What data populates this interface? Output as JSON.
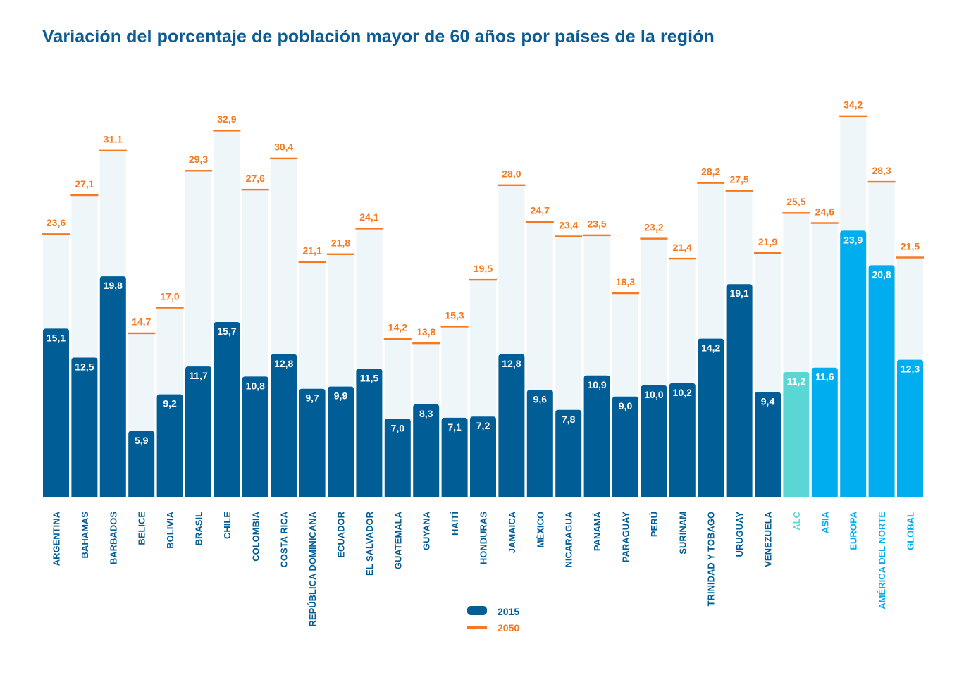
{
  "title": "Variación del porcentaje de población mayor de 60 años por países de la región",
  "legend": {
    "series_2015": "2015",
    "series_2050": "2050"
  },
  "colors": {
    "bar_country": "#005d95",
    "bar_alc": "#5ad6d4",
    "bar_region": "#00aeef",
    "bar_2050_bg": "#eef6fa",
    "marker_2050": "#f47920",
    "title": "#0b5c92"
  },
  "chart_data": {
    "type": "bar",
    "title": "Variación del porcentaje de población mayor de 60 años por países de la región",
    "xlabel": "",
    "ylabel": "",
    "ylim": [
      0,
      40
    ],
    "grid": false,
    "legend_position": "bottom-center",
    "categories": [
      "ARGENTINA",
      "BAHAMAS",
      "BARBADOS",
      "BELICE",
      "BOLIVIA",
      "BRASIL",
      "CHILE",
      "COLOMBIA",
      "COSTA RICA",
      "REPÚBLICA DOMINICANA",
      "ECUADOR",
      "EL SALVADOR",
      "GUATEMALA",
      "GUYANA",
      "HAITÍ",
      "HONDURAS",
      "JAMAICA",
      "MÉXICO",
      "NICARAGUA",
      "PANAMÁ",
      "PARAGUAY",
      "PERÚ",
      "SURINAM",
      "TRINIDAD Y TOBAGO",
      "URUGUAY",
      "VENEZUELA",
      "ALC",
      "ASIA",
      "EUROPA",
      "AMÉRICA DEL NORTE",
      "GLOBAL"
    ],
    "category_groups": [
      "country",
      "country",
      "country",
      "country",
      "country",
      "country",
      "country",
      "country",
      "country",
      "country",
      "country",
      "country",
      "country",
      "country",
      "country",
      "country",
      "country",
      "country",
      "country",
      "country",
      "country",
      "country",
      "country",
      "country",
      "country",
      "country",
      "alc",
      "region",
      "region",
      "region",
      "region"
    ],
    "series": [
      {
        "name": "2015",
        "values": [
          15.1,
          12.5,
          19.8,
          5.9,
          9.2,
          11.7,
          15.7,
          10.8,
          12.8,
          9.7,
          9.9,
          11.5,
          7.0,
          8.3,
          7.1,
          7.2,
          12.8,
          9.6,
          7.8,
          10.9,
          9.0,
          10.0,
          10.2,
          14.2,
          19.1,
          9.4,
          11.2,
          11.6,
          23.9,
          20.8,
          12.3
        ],
        "labels": [
          "15,1",
          "12,5",
          "19,8",
          "5,9",
          "9,2",
          "11,7",
          "15,7",
          "10,8",
          "12,8",
          "9,7",
          "9,9",
          "11,5",
          "7,0",
          "8,3",
          "7,1",
          "7,2",
          "12,8",
          "9,6",
          "7,8",
          "10,9",
          "9,0",
          "10,0",
          "10,2",
          "14,2",
          "19,1",
          "9,4",
          "11,2",
          "11,6",
          "23,9",
          "20,8",
          "12,3"
        ]
      },
      {
        "name": "2050",
        "values": [
          23.6,
          27.1,
          31.1,
          14.7,
          17.0,
          29.3,
          32.9,
          27.6,
          30.4,
          21.1,
          21.8,
          24.1,
          14.2,
          13.8,
          15.3,
          19.5,
          28.0,
          24.7,
          23.4,
          23.5,
          18.3,
          23.2,
          21.4,
          28.2,
          27.5,
          21.9,
          25.5,
          24.6,
          34.2,
          28.3,
          21.5
        ],
        "labels": [
          "23,6",
          "27,1",
          "31,1",
          "14,7",
          "17,0",
          "29,3",
          "32,9",
          "27,6",
          "30,4",
          "21,1",
          "21,8",
          "24,1",
          "14,2",
          "13,8",
          "15,3",
          "19,5",
          "28,0",
          "24,7",
          "23,4",
          "23,5",
          "18,3",
          "23,2",
          "21,4",
          "28,2",
          "27,5",
          "21,9",
          "25,5",
          "24,6",
          "34,2",
          "28,3",
          "21,5"
        ]
      }
    ]
  }
}
